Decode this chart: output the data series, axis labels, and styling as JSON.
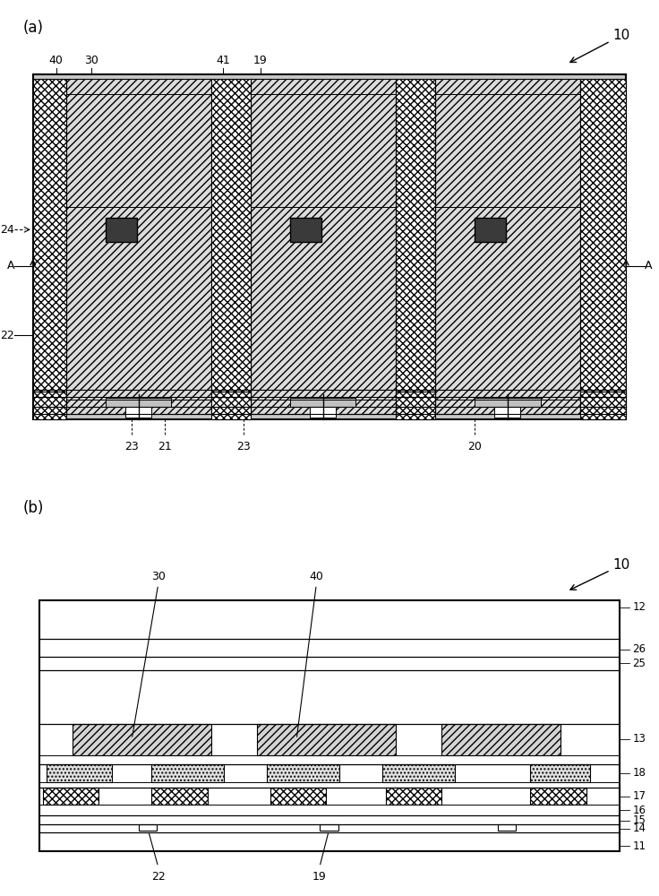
{
  "bg_color": "#ffffff",
  "fig_width": 7.36,
  "fig_height": 10.0,
  "panel_a_labels_top": [
    "40",
    "30",
    "41",
    "19"
  ],
  "panel_a_labels_left": [
    "24",
    "A",
    "22"
  ],
  "panel_a_labels_bottom": [
    "23",
    "21",
    "23",
    "20"
  ],
  "panel_b_labels_right": [
    "12",
    "26",
    "25",
    "13",
    "18",
    "17",
    "16",
    "15",
    "14",
    "11"
  ],
  "panel_b_labels_top": [
    "30",
    "40"
  ],
  "panel_b_labels_bottom": [
    "22",
    "19"
  ]
}
